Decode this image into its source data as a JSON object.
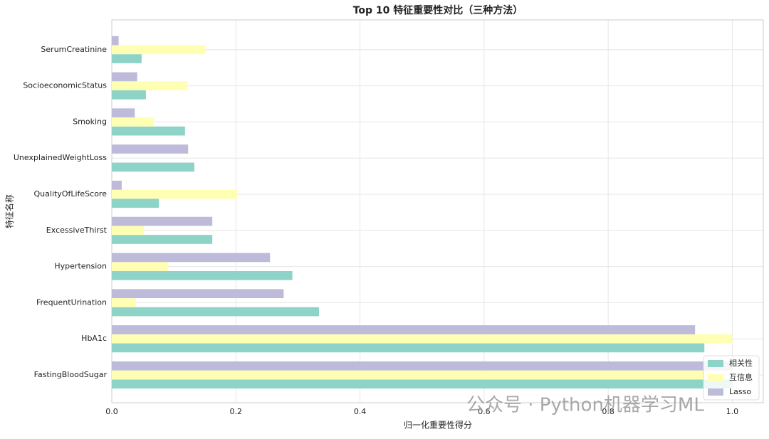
{
  "chart_data": {
    "type": "barh",
    "title": "Top 10 特征重要性对比（三种方法）",
    "x_label": "归一化重要性得分",
    "y_label": "特征名称",
    "watermark": "公众号 · Python机器学习ML",
    "categories": [
      "FastingBloodSugar",
      "HbA1c",
      "FrequentUrination",
      "Hypertension",
      "ExcessiveThirst",
      "QualityOfLifeScore",
      "UnexplainedWeightLoss",
      "Smoking",
      "SocioeconomicStatus",
      "SerumCreatinine"
    ],
    "series": [
      {
        "name": "相关性",
        "color": "#8dd3c7",
        "values": [
          1.0,
          0.955,
          0.334,
          0.291,
          0.162,
          0.076,
          0.133,
          0.118,
          0.055,
          0.048
        ]
      },
      {
        "name": "互信息",
        "color": "#ffffb3",
        "values": [
          0.97,
          1.0,
          0.039,
          0.091,
          0.052,
          0.202,
          0,
          0.068,
          0.122,
          0.151
        ]
      },
      {
        "name": "Lasso",
        "color": "#bebada",
        "values": [
          1.0,
          0.94,
          0.277,
          0.255,
          0.162,
          0.016,
          0.123,
          0.037,
          0.041,
          0.011
        ]
      }
    ],
    "xlim": [
      0,
      1.05
    ],
    "xticks": [
      {
        "value": 0,
        "label": "0.0"
      },
      0.2,
      0.4,
      0.6,
      0.8,
      {
        "value": 1,
        "label": "1.0"
      }
    ],
    "grid": true,
    "legend": "lower right"
  }
}
